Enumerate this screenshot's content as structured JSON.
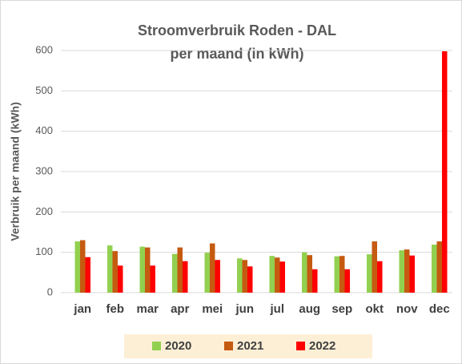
{
  "chart_data": {
    "type": "bar",
    "title": "Stroomverbruik Roden - DAL",
    "subtitle": "per maand (in kWh)",
    "y_label": "Verbruik per maand (kWh)",
    "categories": [
      "jan",
      "feb",
      "mar",
      "apr",
      "mei",
      "jun",
      "jul",
      "aug",
      "sep",
      "okt",
      "nov",
      "dec"
    ],
    "series": [
      {
        "name": "2020",
        "color": "#92d050",
        "values": [
          127,
          117,
          114,
          96,
          99,
          85,
          91,
          100,
          90,
          95,
          105,
          119
        ]
      },
      {
        "name": "2021",
        "color": "#c55a11",
        "values": [
          130,
          103,
          112,
          112,
          122,
          81,
          87,
          93,
          91,
          127,
          107,
          127
        ]
      },
      {
        "name": "2022",
        "color": "#ff0000",
        "values": [
          88,
          67,
          67,
          78,
          81,
          65,
          77,
          58,
          58,
          78,
          92,
          598
        ]
      }
    ],
    "ylim": [
      0,
      600
    ],
    "yticks": [
      0,
      100,
      200,
      300,
      400,
      500,
      600
    ],
    "grid": true,
    "legend": "bottom"
  }
}
